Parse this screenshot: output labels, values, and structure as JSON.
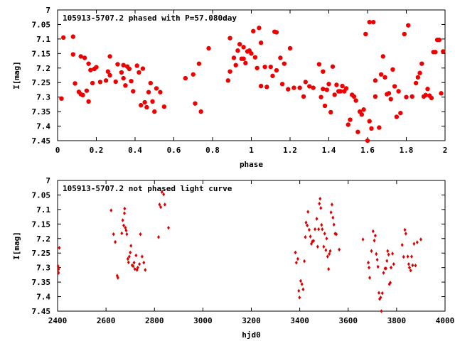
{
  "chart_data": [
    {
      "type": "scatter",
      "title": "105913-5707.2 phased with P=57.080day",
      "xlabel": "phase",
      "ylabel": "I[mag]",
      "xlim": [
        0,
        2
      ],
      "ylim": [
        7.45,
        7
      ],
      "y_inverted": true,
      "grid": false,
      "marker": "filled-circle",
      "color": "#ee0000",
      "xticks": [
        "0",
        "0.2",
        "0.4",
        "0.6",
        "0.8",
        "1",
        "1.2",
        "1.4",
        "1.6",
        "1.8",
        "2"
      ],
      "xtick_values": [
        0,
        0.2,
        0.4,
        0.6,
        0.8,
        1,
        1.2,
        1.4,
        1.6,
        1.8,
        2
      ],
      "yticks": [
        "7",
        "7.05",
        "7.1",
        "7.15",
        "7.2",
        "7.25",
        "7.3",
        "7.35",
        "7.4",
        "7.45"
      ],
      "ytick_values": [
        7,
        7.05,
        7.1,
        7.15,
        7.2,
        7.25,
        7.3,
        7.35,
        7.4,
        7.45
      ],
      "points": [
        [
          0.02,
          7.305
        ],
        [
          0.03,
          7.095
        ],
        [
          0.08,
          7.092
        ],
        [
          0.08,
          7.153
        ],
        [
          0.09,
          7.253
        ],
        [
          0.11,
          7.282
        ],
        [
          0.12,
          7.16
        ],
        [
          0.12,
          7.29
        ],
        [
          0.13,
          7.293
        ],
        [
          0.14,
          7.165
        ],
        [
          0.15,
          7.278
        ],
        [
          0.16,
          7.315
        ],
        [
          0.16,
          7.185
        ],
        [
          0.17,
          7.207
        ],
        [
          0.18,
          7.252
        ],
        [
          0.19,
          7.203
        ],
        [
          0.2,
          7.197
        ],
        [
          0.22,
          7.248
        ],
        [
          0.25,
          7.243
        ],
        [
          0.26,
          7.212
        ],
        [
          0.27,
          7.225
        ],
        [
          0.27,
          7.16
        ],
        [
          0.3,
          7.247
        ],
        [
          0.31,
          7.187
        ],
        [
          0.33,
          7.215
        ],
        [
          0.34,
          7.19
        ],
        [
          0.34,
          7.235
        ],
        [
          0.35,
          7.26
        ],
        [
          0.36,
          7.195
        ],
        [
          0.37,
          7.203
        ],
        [
          0.38,
          7.245
        ],
        [
          0.39,
          7.28
        ],
        [
          0.41,
          7.192
        ],
        [
          0.42,
          7.215
        ],
        [
          0.43,
          7.328
        ],
        [
          0.44,
          7.202
        ],
        [
          0.45,
          7.318
        ],
        [
          0.46,
          7.335
        ],
        [
          0.47,
          7.283
        ],
        [
          0.48,
          7.252
        ],
        [
          0.49,
          7.315
        ],
        [
          0.5,
          7.35
        ],
        [
          0.51,
          7.27
        ],
        [
          0.53,
          7.283
        ],
        [
          0.55,
          7.333
        ],
        [
          0.66,
          7.235
        ],
        [
          0.7,
          7.222
        ],
        [
          0.71,
          7.322
        ],
        [
          0.73,
          7.185
        ],
        [
          0.74,
          7.35
        ],
        [
          0.78,
          7.132
        ],
        [
          0.88,
          7.243
        ],
        [
          0.89,
          7.097
        ],
        [
          0.89,
          7.212
        ],
        [
          0.91,
          7.165
        ],
        [
          0.92,
          7.19
        ],
        [
          0.93,
          7.14
        ],
        [
          0.94,
          7.118
        ],
        [
          0.95,
          7.168
        ],
        [
          0.96,
          7.168
        ],
        [
          0.96,
          7.128
        ],
        [
          0.97,
          7.183
        ],
        [
          0.98,
          7.143
        ],
        [
          0.99,
          7.14
        ],
        [
          1.0,
          7.15
        ],
        [
          1.01,
          7.073
        ],
        [
          1.02,
          7.163
        ],
        [
          1.03,
          7.2
        ],
        [
          1.04,
          7.062
        ],
        [
          1.05,
          7.262
        ],
        [
          1.05,
          7.113
        ],
        [
          1.07,
          7.196
        ],
        [
          1.08,
          7.265
        ],
        [
          1.1,
          7.196
        ],
        [
          1.11,
          7.227
        ],
        [
          1.12,
          7.075
        ],
        [
          1.13,
          7.077
        ],
        [
          1.13,
          7.208
        ],
        [
          1.15,
          7.165
        ],
        [
          1.16,
          7.255
        ],
        [
          1.17,
          7.185
        ],
        [
          1.19,
          7.273
        ],
        [
          1.2,
          7.132
        ],
        [
          1.22,
          7.268
        ],
        [
          1.25,
          7.268
        ],
        [
          1.27,
          7.298
        ],
        [
          1.28,
          7.248
        ],
        [
          1.3,
          7.263
        ],
        [
          1.32,
          7.268
        ],
        [
          1.35,
          7.187
        ],
        [
          1.36,
          7.3
        ],
        [
          1.37,
          7.272
        ],
        [
          1.37,
          7.212
        ],
        [
          1.38,
          7.33
        ],
        [
          1.39,
          7.275
        ],
        [
          1.4,
          7.255
        ],
        [
          1.41,
          7.352
        ],
        [
          1.42,
          7.195
        ],
        [
          1.43,
          7.292
        ],
        [
          1.44,
          7.258
        ],
        [
          1.45,
          7.28
        ],
        [
          1.46,
          7.28
        ],
        [
          1.47,
          7.262
        ],
        [
          1.48,
          7.28
        ],
        [
          1.49,
          7.27
        ],
        [
          1.5,
          7.395
        ],
        [
          1.51,
          7.378
        ],
        [
          1.52,
          7.292
        ],
        [
          1.53,
          7.298
        ],
        [
          1.54,
          7.312
        ],
        [
          1.55,
          7.42
        ],
        [
          1.56,
          7.35
        ],
        [
          1.57,
          7.36
        ],
        [
          1.58,
          7.343
        ],
        [
          1.59,
          7.083
        ],
        [
          1.6,
          7.45
        ],
        [
          1.61,
          7.042
        ],
        [
          1.61,
          7.383
        ],
        [
          1.62,
          7.408
        ],
        [
          1.63,
          7.042
        ],
        [
          1.64,
          7.243
        ],
        [
          1.64,
          7.298
        ],
        [
          1.66,
          7.405
        ],
        [
          1.67,
          7.222
        ],
        [
          1.68,
          7.16
        ],
        [
          1.69,
          7.232
        ],
        [
          1.7,
          7.29
        ],
        [
          1.71,
          7.287
        ],
        [
          1.72,
          7.307
        ],
        [
          1.73,
          7.205
        ],
        [
          1.74,
          7.263
        ],
        [
          1.75,
          7.368
        ],
        [
          1.76,
          7.28
        ],
        [
          1.77,
          7.355
        ],
        [
          1.79,
          7.083
        ],
        [
          1.8,
          7.3
        ],
        [
          1.81,
          7.053
        ],
        [
          1.83,
          7.298
        ],
        [
          1.85,
          7.252
        ],
        [
          1.86,
          7.232
        ],
        [
          1.87,
          7.217
        ],
        [
          1.88,
          7.185
        ],
        [
          1.89,
          7.298
        ],
        [
          1.9,
          7.293
        ],
        [
          1.91,
          7.272
        ],
        [
          1.92,
          7.295
        ],
        [
          1.93,
          7.303
        ],
        [
          1.94,
          7.145
        ],
        [
          1.95,
          7.145
        ],
        [
          1.96,
          7.103
        ],
        [
          1.97,
          7.103
        ],
        [
          1.98,
          7.287
        ],
        [
          1.99,
          7.143
        ]
      ]
    },
    {
      "type": "scatter",
      "title": "105913-5707.2 not phased light curve",
      "xlabel": "hjd0",
      "ylabel": "I[mag]",
      "xlim": [
        2400,
        4000
      ],
      "ylim": [
        7.45,
        7
      ],
      "y_inverted": true,
      "grid": false,
      "marker": "small-filled-diamond",
      "color": "#dd0000",
      "xticks": [
        "2400",
        "2600",
        "2800",
        "3000",
        "3200",
        "3400",
        "3600",
        "3800",
        "4000"
      ],
      "xtick_values": [
        2400,
        2600,
        2800,
        3000,
        3200,
        3400,
        3600,
        3800,
        4000
      ],
      "yticks": [
        "7",
        "7.05",
        "7.1",
        "7.15",
        "7.2",
        "7.25",
        "7.3",
        "7.35",
        "7.4",
        "7.45"
      ],
      "ytick_values": [
        7,
        7.05,
        7.1,
        7.15,
        7.2,
        7.25,
        7.3,
        7.35,
        7.4,
        7.45
      ],
      "points": [
        [
          2402,
          7.295
        ],
        [
          2404,
          7.305
        ],
        [
          2404,
          7.318
        ],
        [
          2407,
          7.232
        ],
        [
          2621,
          7.103
        ],
        [
          2631,
          7.185
        ],
        [
          2638,
          7.212
        ],
        [
          2646,
          7.328
        ],
        [
          2649,
          7.335
        ],
        [
          2665,
          7.182
        ],
        [
          2669,
          7.137
        ],
        [
          2673,
          7.155
        ],
        [
          2676,
          7.113
        ],
        [
          2677,
          7.097
        ],
        [
          2680,
          7.163
        ],
        [
          2683,
          7.172
        ],
        [
          2686,
          7.185
        ],
        [
          2690,
          7.27
        ],
        [
          2693,
          7.282
        ],
        [
          2696,
          7.262
        ],
        [
          2700,
          7.248
        ],
        [
          2703,
          7.225
        ],
        [
          2708,
          7.292
        ],
        [
          2712,
          7.295
        ],
        [
          2716,
          7.283
        ],
        [
          2719,
          7.305
        ],
        [
          2724,
          7.258
        ],
        [
          2728,
          7.308
        ],
        [
          2731,
          7.3
        ],
        [
          2738,
          7.288
        ],
        [
          2742,
          7.185
        ],
        [
          2749,
          7.262
        ],
        [
          2756,
          7.283
        ],
        [
          2762,
          7.308
        ],
        [
          2817,
          7.195
        ],
        [
          2821,
          7.083
        ],
        [
          2826,
          7.092
        ],
        [
          2831,
          7.04
        ],
        [
          2838,
          7.048
        ],
        [
          2843,
          7.083
        ],
        [
          2858,
          7.163
        ],
        [
          3382,
          7.248
        ],
        [
          3386,
          7.283
        ],
        [
          3392,
          7.27
        ],
        [
          3396,
          7.38
        ],
        [
          3399,
          7.403
        ],
        [
          3404,
          7.346
        ],
        [
          3409,
          7.357
        ],
        [
          3414,
          7.375
        ],
        [
          3419,
          7.278
        ],
        [
          3423,
          7.195
        ],
        [
          3426,
          7.145
        ],
        [
          3431,
          7.155
        ],
        [
          3434,
          7.108
        ],
        [
          3439,
          7.17
        ],
        [
          3444,
          7.193
        ],
        [
          3448,
          7.218
        ],
        [
          3452,
          7.21
        ],
        [
          3457,
          7.208
        ],
        [
          3463,
          7.168
        ],
        [
          3470,
          7.132
        ],
        [
          3474,
          7.228
        ],
        [
          3478,
          7.168
        ],
        [
          3481,
          7.08
        ],
        [
          3484,
          7.063
        ],
        [
          3487,
          7.095
        ],
        [
          3490,
          7.153
        ],
        [
          3493,
          7.168
        ],
        [
          3499,
          7.228
        ],
        [
          3503,
          7.183
        ],
        [
          3508,
          7.24
        ],
        [
          3511,
          7.2
        ],
        [
          3515,
          7.262
        ],
        [
          3519,
          7.305
        ],
        [
          3522,
          7.253
        ],
        [
          3526,
          7.243
        ],
        [
          3529,
          7.11
        ],
        [
          3533,
          7.083
        ],
        [
          3537,
          7.128
        ],
        [
          3541,
          7.152
        ],
        [
          3546,
          7.183
        ],
        [
          3551,
          7.185
        ],
        [
          3563,
          7.238
        ],
        [
          3661,
          7.203
        ],
        [
          3683,
          7.283
        ],
        [
          3686,
          7.3
        ],
        [
          3689,
          7.335
        ],
        [
          3696,
          7.243
        ],
        [
          3703,
          7.175
        ],
        [
          3708,
          7.207
        ],
        [
          3712,
          7.19
        ],
        [
          3716,
          7.253
        ],
        [
          3720,
          7.273
        ],
        [
          3723,
          7.297
        ],
        [
          3727,
          7.387
        ],
        [
          3730,
          7.408
        ],
        [
          3734,
          7.403
        ],
        [
          3737,
          7.45
        ],
        [
          3741,
          7.388
        ],
        [
          3746,
          7.318
        ],
        [
          3752,
          7.303
        ],
        [
          3756,
          7.303
        ],
        [
          3760,
          7.277
        ],
        [
          3763,
          7.243
        ],
        [
          3767,
          7.255
        ],
        [
          3770,
          7.357
        ],
        [
          3774,
          7.352
        ],
        [
          3777,
          7.3
        ],
        [
          3783,
          7.252
        ],
        [
          3788,
          7.288
        ],
        [
          3823,
          7.222
        ],
        [
          3829,
          7.263
        ],
        [
          3834,
          7.17
        ],
        [
          3838,
          7.183
        ],
        [
          3846,
          7.262
        ],
        [
          3850,
          7.288
        ],
        [
          3853,
          7.3
        ],
        [
          3858,
          7.31
        ],
        [
          3862,
          7.262
        ],
        [
          3866,
          7.292
        ],
        [
          3872,
          7.218
        ],
        [
          3878,
          7.293
        ],
        [
          3885,
          7.213
        ],
        [
          3900,
          7.203
        ]
      ]
    }
  ]
}
